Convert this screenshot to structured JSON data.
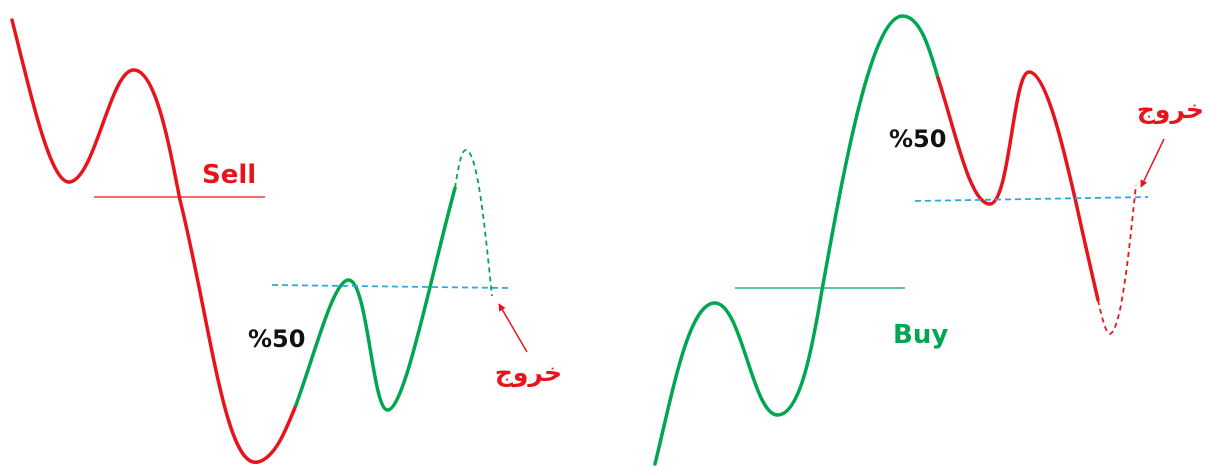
{
  "colors": {
    "sell": "#e8141b",
    "buy": "#00a650",
    "fifty_line": "#2ea8e0",
    "pct_text": "#111111"
  },
  "sell_panel": {
    "signal_label": "Sell",
    "pct_label": "%50",
    "exit_label": "خروج"
  },
  "buy_panel": {
    "signal_label": "Buy",
    "pct_label": "%50",
    "exit_label": "خروج"
  }
}
